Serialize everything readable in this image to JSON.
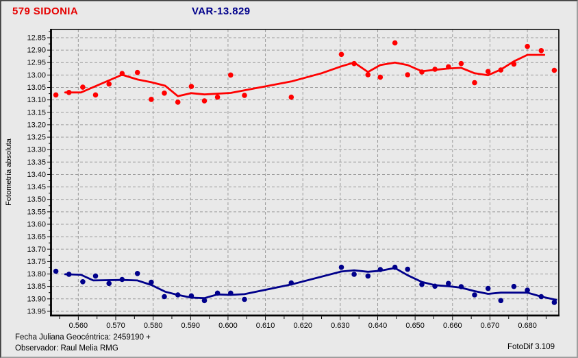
{
  "header": {
    "object_title": "579 SIDONIA",
    "var_title": "VAR-13.829"
  },
  "footer": {
    "julian_date_label": "Fecha Juliana Geocéntrica: 2459190 +",
    "observer_label": "Observador: Raul Melia RMG",
    "app_version": "FotoDif 3.109"
  },
  "colors": {
    "background": "#e9e9e9",
    "grid": "#9a9a9a",
    "axis": "#000000",
    "red_series": "#ff0000",
    "blue_series": "#00008b"
  },
  "chart_data": {
    "type": "scatter",
    "title": "579 SIDONIA",
    "subtitle": "VAR-13.829",
    "xlabel": "",
    "ylabel": "Fotometría absoluta",
    "x_axis_note": "Fecha Juliana Geocéntrica: 2459190 +",
    "grid": true,
    "legend": "none",
    "y_axis_inverted": true,
    "xlim": [
      0.5528,
      0.6884
    ],
    "ylim": [
      12.817,
      13.964
    ],
    "x_ticks": [
      "0.560",
      "0.570",
      "0.580",
      "0.590",
      "0.600",
      "0.610",
      "0.620",
      "0.630",
      "0.640",
      "0.650",
      "0.660",
      "0.670",
      "0.680"
    ],
    "y_ticks": [
      "12.85",
      "12.90",
      "12.95",
      "13.00",
      "13.05",
      "13.10",
      "13.15",
      "13.20",
      "13.25",
      "13.30",
      "13.35",
      "13.40",
      "13.45",
      "13.50",
      "13.55",
      "13.60",
      "13.65",
      "13.70",
      "13.75",
      "13.80",
      "13.85",
      "13.90",
      "13.95"
    ],
    "x": [
      0.554,
      0.5575,
      0.5612,
      0.5646,
      0.5682,
      0.5717,
      0.5758,
      0.5795,
      0.583,
      0.5866,
      0.5902,
      0.5937,
      0.5972,
      0.6007,
      0.6044,
      0.6169,
      0.6303,
      0.6337,
      0.6374,
      0.6407,
      0.6446,
      0.648,
      0.6518,
      0.6553,
      0.6589,
      0.6623,
      0.6659,
      0.6695,
      0.6729,
      0.6764,
      0.68,
      0.6837,
      0.6872
    ],
    "series": [
      {
        "name": "579 SIDONIA",
        "color": "#ff0000",
        "mag": [
          13.08,
          13.07,
          13.049,
          13.08,
          13.036,
          12.994,
          12.99,
          13.098,
          13.073,
          13.109,
          13.046,
          13.104,
          13.089,
          13.0,
          13.082,
          13.089,
          12.917,
          12.954,
          12.999,
          13.009,
          12.871,
          12.999,
          12.988,
          12.977,
          12.967,
          12.954,
          13.031,
          12.986,
          12.98,
          12.956,
          12.885,
          12.902,
          12.981
        ],
        "trend": [
          [
            0.5565,
            13.07
          ],
          [
            0.5607,
            13.07
          ],
          [
            0.5717,
            12.999
          ],
          [
            0.5758,
            13.018
          ],
          [
            0.5795,
            13.029
          ],
          [
            0.5832,
            13.043
          ],
          [
            0.5866,
            13.085
          ],
          [
            0.5902,
            13.073
          ],
          [
            0.5937,
            13.078
          ],
          [
            0.6007,
            13.072
          ],
          [
            0.6169,
            13.026
          ],
          [
            0.625,
            12.993
          ],
          [
            0.6303,
            12.965
          ],
          [
            0.6337,
            12.95
          ],
          [
            0.6374,
            12.988
          ],
          [
            0.6407,
            12.96
          ],
          [
            0.6446,
            12.95
          ],
          [
            0.648,
            12.96
          ],
          [
            0.6518,
            12.985
          ],
          [
            0.6553,
            12.979
          ],
          [
            0.6589,
            12.974
          ],
          [
            0.6623,
            12.971
          ],
          [
            0.6659,
            12.993
          ],
          [
            0.6695,
            13.001
          ],
          [
            0.6729,
            12.978
          ],
          [
            0.6764,
            12.945
          ],
          [
            0.68,
            12.919
          ],
          [
            0.6845,
            12.919
          ]
        ]
      },
      {
        "name": "VAR-13.829",
        "color": "#00008b",
        "mag": [
          13.789,
          13.801,
          13.831,
          13.808,
          13.838,
          13.822,
          13.798,
          13.833,
          13.891,
          13.884,
          13.888,
          13.907,
          13.877,
          13.877,
          13.902,
          13.836,
          13.773,
          13.801,
          13.808,
          13.782,
          13.773,
          13.781,
          13.842,
          13.849,
          13.838,
          13.851,
          13.884,
          13.858,
          13.907,
          13.85,
          13.865,
          13.891,
          13.914
        ],
        "trend": [
          [
            0.5565,
            13.801
          ],
          [
            0.5607,
            13.803
          ],
          [
            0.564,
            13.826
          ],
          [
            0.5717,
            13.824
          ],
          [
            0.5758,
            13.826
          ],
          [
            0.5795,
            13.844
          ],
          [
            0.5832,
            13.871
          ],
          [
            0.5866,
            13.884
          ],
          [
            0.5902,
            13.895
          ],
          [
            0.5937,
            13.897
          ],
          [
            0.5972,
            13.882
          ],
          [
            0.6007,
            13.884
          ],
          [
            0.6044,
            13.881
          ],
          [
            0.6169,
            13.842
          ],
          [
            0.6303,
            13.79
          ],
          [
            0.6337,
            13.785
          ],
          [
            0.6374,
            13.791
          ],
          [
            0.6407,
            13.787
          ],
          [
            0.6446,
            13.776
          ],
          [
            0.648,
            13.805
          ],
          [
            0.6518,
            13.832
          ],
          [
            0.6553,
            13.845
          ],
          [
            0.6589,
            13.849
          ],
          [
            0.6623,
            13.855
          ],
          [
            0.6659,
            13.869
          ],
          [
            0.6695,
            13.88
          ],
          [
            0.6729,
            13.875
          ],
          [
            0.68,
            13.875
          ],
          [
            0.6837,
            13.891
          ],
          [
            0.6877,
            13.904
          ]
        ]
      }
    ]
  }
}
